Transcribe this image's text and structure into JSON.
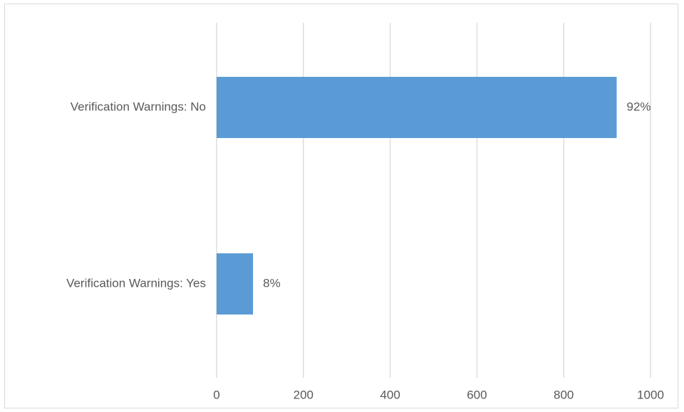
{
  "chart_data": {
    "type": "bar",
    "orientation": "horizontal",
    "title": "",
    "xlabel": "",
    "ylabel": "",
    "categories": [
      "Verification Warnings: No",
      "Verification Warnings: Yes"
    ],
    "values": [
      922,
      84
    ],
    "data_labels": [
      "92%",
      "8%"
    ],
    "xlim": [
      0,
      1000
    ],
    "xticks": [
      "0",
      "200",
      "400",
      "600",
      "800",
      "1000"
    ],
    "grid": true,
    "legend": "none",
    "colors": {
      "bar": "#5b9bd5",
      "grid": "#d9d9d9",
      "text": "#595959"
    }
  }
}
